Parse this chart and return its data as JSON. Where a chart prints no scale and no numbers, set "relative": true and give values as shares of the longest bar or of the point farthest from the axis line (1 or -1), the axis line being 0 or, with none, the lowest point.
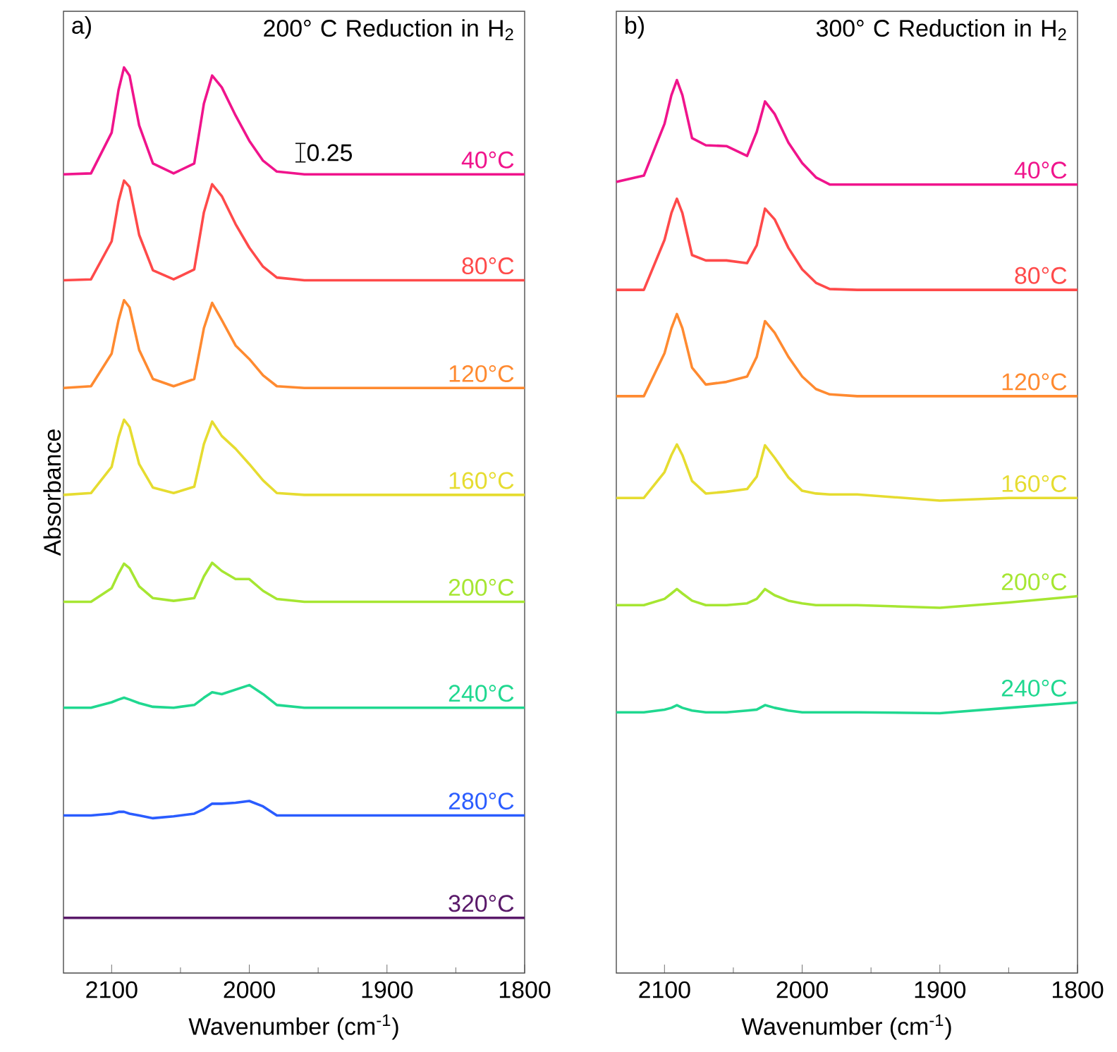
{
  "chart_data": [
    {
      "type": "line",
      "relative": true,
      "title": "200° C Reduction in H$_{2}$",
      "xlabel": "Wavenumber (cm$^{-1}$)",
      "ylabel": "Absorbance",
      "xlim": [
        2135,
        1800
      ],
      "xticks": [
        2100,
        2000,
        1900,
        1800
      ],
      "annotations": [
        "a)",
        "0.25"
      ],
      "x": [
        2135,
        2115,
        2100,
        2095,
        2091,
        2087,
        2080,
        2070,
        2055,
        2040,
        2033,
        2027,
        2020,
        2010,
        2000,
        1990,
        1980,
        1960,
        1900,
        1850,
        1800
      ],
      "series": [
        {
          "name": "40°C",
          "color": "#f0148c",
          "values": [
            0.882,
            0.883,
            0.928,
            0.975,
            1,
            0.991,
            0.936,
            0.894,
            0.883,
            0.894,
            0.96,
            0.991,
            0.978,
            0.947,
            0.919,
            0.897,
            0.885,
            0.882,
            0.882,
            0.882,
            0.882
          ]
        },
        {
          "name": "80°C",
          "color": "#ff4a4a",
          "values": [
            0.765,
            0.766,
            0.808,
            0.852,
            0.875,
            0.868,
            0.815,
            0.776,
            0.766,
            0.777,
            0.84,
            0.871,
            0.858,
            0.827,
            0.801,
            0.78,
            0.768,
            0.765,
            0.765,
            0.765,
            0.765
          ]
        },
        {
          "name": "120°C",
          "color": "#ff8a30",
          "values": [
            0.646,
            0.648,
            0.684,
            0.721,
            0.743,
            0.735,
            0.688,
            0.656,
            0.648,
            0.656,
            0.712,
            0.74,
            0.721,
            0.693,
            0.678,
            0.66,
            0.648,
            0.646,
            0.646,
            0.646,
            0.646
          ]
        },
        {
          "name": "160°C",
          "color": "#e6dc30",
          "values": [
            0.528,
            0.53,
            0.559,
            0.592,
            0.611,
            0.603,
            0.562,
            0.536,
            0.53,
            0.537,
            0.584,
            0.609,
            0.593,
            0.579,
            0.562,
            0.544,
            0.53,
            0.528,
            0.528,
            0.528,
            0.528
          ]
        },
        {
          "name": "200°C",
          "color": "#a6e632",
          "values": [
            0.41,
            0.41,
            0.425,
            0.441,
            0.452,
            0.447,
            0.427,
            0.414,
            0.411,
            0.414,
            0.438,
            0.453,
            0.444,
            0.435,
            0.435,
            0.422,
            0.413,
            0.41,
            0.41,
            0.41,
            0.41
          ]
        },
        {
          "name": "240°C",
          "color": "#20d890",
          "values": [
            0.293,
            0.293,
            0.299,
            0.302,
            0.304,
            0.302,
            0.298,
            0.294,
            0.293,
            0.296,
            0.304,
            0.31,
            0.308,
            0.313,
            0.318,
            0.308,
            0.296,
            0.293,
            0.293,
            0.293,
            0.293
          ]
        },
        {
          "name": "280°C",
          "color": "#2a5cff",
          "values": [
            0.174,
            0.174,
            0.176,
            0.178,
            0.178,
            0.176,
            0.174,
            0.171,
            0.173,
            0.176,
            0.181,
            0.187,
            0.187,
            0.188,
            0.19,
            0.184,
            0.174,
            0.174,
            0.174,
            0.174,
            0.174
          ]
        },
        {
          "name": "320°C",
          "color": "#5a1a6a",
          "values": [
            0.061,
            0.061,
            0.061,
            0.061,
            0.061,
            0.061,
            0.061,
            0.061,
            0.061,
            0.061,
            0.061,
            0.061,
            0.061,
            0.061,
            0.061,
            0.061,
            0.061,
            0.061,
            0.061,
            0.061,
            0.061
          ]
        }
      ]
    },
    {
      "type": "line",
      "relative": true,
      "title": "300° C Reduction in H$_{2}$",
      "xlabel": "Wavenumber (cm$^{-1}$)",
      "xlim": [
        2135,
        1800
      ],
      "xticks": [
        2100,
        2000,
        1900,
        1800
      ],
      "annotations": [
        "b)"
      ],
      "x": [
        2135,
        2115,
        2100,
        2095,
        2091,
        2087,
        2080,
        2070,
        2055,
        2040,
        2033,
        2027,
        2020,
        2010,
        2000,
        1990,
        1980,
        1960,
        1900,
        1850,
        1800
      ],
      "series": [
        {
          "name": "40°C",
          "color": "#f0148c",
          "values": [
            0.886,
            0.893,
            0.951,
            0.983,
            1,
            0.983,
            0.935,
            0.927,
            0.926,
            0.915,
            0.942,
            0.976,
            0.962,
            0.93,
            0.907,
            0.891,
            0.883,
            0.883,
            0.883,
            0.883,
            0.883
          ]
        },
        {
          "name": "80°C",
          "color": "#ff4a4a",
          "values": [
            0.765,
            0.765,
            0.821,
            0.851,
            0.867,
            0.851,
            0.804,
            0.798,
            0.798,
            0.795,
            0.815,
            0.856,
            0.844,
            0.812,
            0.788,
            0.773,
            0.766,
            0.765,
            0.765,
            0.765,
            0.765
          ]
        },
        {
          "name": "120°C",
          "color": "#ff8a30",
          "values": [
            0.646,
            0.646,
            0.694,
            0.722,
            0.738,
            0.722,
            0.678,
            0.659,
            0.662,
            0.668,
            0.69,
            0.73,
            0.717,
            0.69,
            0.668,
            0.654,
            0.648,
            0.646,
            0.646,
            0.646,
            0.646
          ]
        },
        {
          "name": "160°C",
          "color": "#e6dc30",
          "values": [
            0.532,
            0.532,
            0.561,
            0.58,
            0.592,
            0.58,
            0.551,
            0.537,
            0.539,
            0.542,
            0.556,
            0.591,
            0.577,
            0.555,
            0.54,
            0.537,
            0.536,
            0.536,
            0.529,
            0.532,
            0.532
          ]
        },
        {
          "name": "200°C",
          "color": "#a6e632",
          "values": [
            0.412,
            0.412,
            0.419,
            0.425,
            0.43,
            0.425,
            0.417,
            0.412,
            0.412,
            0.414,
            0.419,
            0.43,
            0.423,
            0.417,
            0.414,
            0.412,
            0.412,
            0.412,
            0.409,
            0.415,
            0.422
          ]
        },
        {
          "name": "240°C",
          "color": "#20d890",
          "values": [
            0.292,
            0.292,
            0.295,
            0.297,
            0.3,
            0.297,
            0.294,
            0.292,
            0.292,
            0.294,
            0.295,
            0.3,
            0.297,
            0.294,
            0.292,
            0.292,
            0.292,
            0.292,
            0.291,
            0.297,
            0.303
          ]
        }
      ]
    }
  ]
}
